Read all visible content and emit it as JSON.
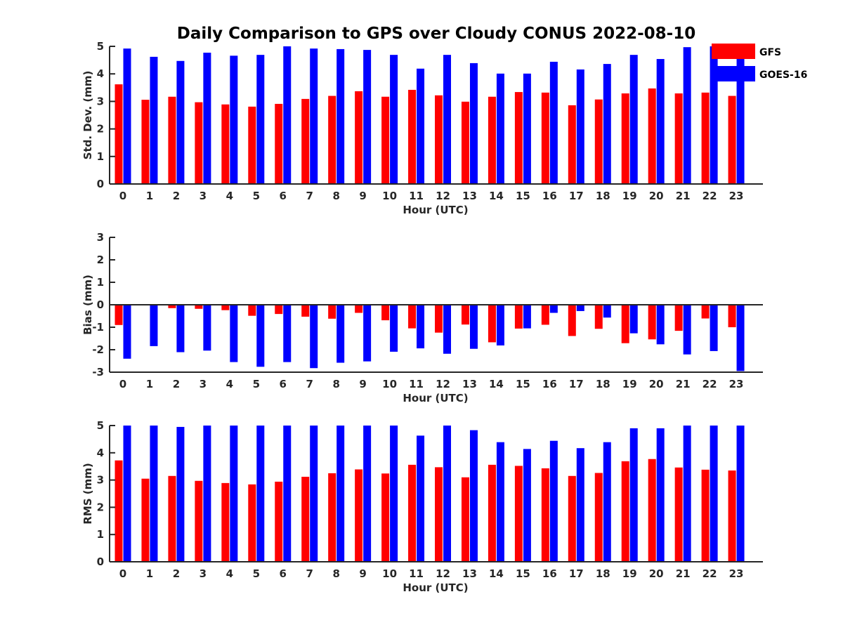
{
  "title": "Daily Comparison to GPS over Cloudy CONUS 2022-08-10",
  "colors": {
    "GFS": "#ff0000",
    "GOES-16": "#0000ff"
  },
  "legend": {
    "position": "top-right",
    "entries": [
      "GFS",
      "GOES-16"
    ]
  },
  "chart_data": [
    {
      "type": "bar",
      "xlabel": "Hour (UTC)",
      "ylabel": "Std. Dev. (mm)",
      "ylim": [
        0,
        5
      ],
      "yticks": [
        0,
        1,
        2,
        3,
        4,
        5
      ],
      "categories": [
        "0",
        "1",
        "2",
        "3",
        "4",
        "5",
        "6",
        "7",
        "8",
        "9",
        "10",
        "11",
        "12",
        "13",
        "14",
        "15",
        "16",
        "17",
        "18",
        "19",
        "20",
        "21",
        "22",
        "23"
      ],
      "series": [
        {
          "name": "GFS",
          "values": [
            3.62,
            3.06,
            3.17,
            2.97,
            2.89,
            2.81,
            2.91,
            3.09,
            3.2,
            3.37,
            3.17,
            3.42,
            3.22,
            2.99,
            3.17,
            3.34,
            3.32,
            2.86,
            3.07,
            3.29,
            3.47,
            3.29,
            3.32,
            3.2
          ]
        },
        {
          "name": "GOES-16",
          "values": [
            4.92,
            4.62,
            4.47,
            4.77,
            4.66,
            4.69,
            5.0,
            4.92,
            4.9,
            4.87,
            4.69,
            4.19,
            4.69,
            4.39,
            4.01,
            4.01,
            4.44,
            4.16,
            4.36,
            4.69,
            4.54,
            4.97,
            5.0,
            4.85
          ]
        }
      ]
    },
    {
      "type": "bar",
      "xlabel": "Hour (UTC)",
      "ylabel": "Bias (mm)",
      "ylim": [
        -3,
        3
      ],
      "yticks": [
        -3,
        -2,
        -1,
        0,
        1,
        2,
        3
      ],
      "categories": [
        "0",
        "1",
        "2",
        "3",
        "4",
        "5",
        "6",
        "7",
        "8",
        "9",
        "10",
        "11",
        "12",
        "13",
        "14",
        "15",
        "16",
        "17",
        "18",
        "19",
        "20",
        "21",
        "22",
        "23"
      ],
      "series": [
        {
          "name": "GFS",
          "values": [
            -0.9,
            0.0,
            -0.15,
            -0.18,
            -0.24,
            -0.49,
            -0.41,
            -0.53,
            -0.62,
            -0.36,
            -0.69,
            -1.05,
            -1.24,
            -0.88,
            -1.67,
            -1.06,
            -0.89,
            -1.39,
            -1.07,
            -1.71,
            -1.54,
            -1.16,
            -0.61,
            -1.0
          ]
        },
        {
          "name": "GOES-16",
          "values": [
            -2.4,
            -1.84,
            -2.11,
            -2.04,
            -2.55,
            -2.76,
            -2.55,
            -2.82,
            -2.58,
            -2.52,
            -2.09,
            -1.94,
            -2.18,
            -1.96,
            -1.81,
            -1.05,
            -0.36,
            -0.28,
            -0.57,
            -1.27,
            -1.76,
            -2.21,
            -2.06,
            -2.95
          ]
        }
      ]
    },
    {
      "type": "bar",
      "xlabel": "Hour (UTC)",
      "ylabel": "RMS (mm)",
      "ylim": [
        0,
        5
      ],
      "yticks": [
        0,
        1,
        2,
        3,
        4,
        5
      ],
      "categories": [
        "0",
        "1",
        "2",
        "3",
        "4",
        "5",
        "6",
        "7",
        "8",
        "9",
        "10",
        "11",
        "12",
        "13",
        "14",
        "15",
        "16",
        "17",
        "18",
        "19",
        "20",
        "21",
        "22",
        "23"
      ],
      "series": [
        {
          "name": "GFS",
          "values": [
            3.72,
            3.05,
            3.15,
            2.97,
            2.89,
            2.84,
            2.94,
            3.12,
            3.25,
            3.39,
            3.24,
            3.56,
            3.47,
            3.1,
            3.56,
            3.52,
            3.43,
            3.15,
            3.26,
            3.69,
            3.77,
            3.46,
            3.38,
            3.35
          ]
        },
        {
          "name": "GOES-16",
          "values": [
            5.0,
            5.0,
            4.95,
            5.0,
            5.0,
            5.0,
            5.0,
            5.0,
            5.0,
            5.0,
            5.0,
            4.63,
            5.0,
            4.83,
            4.39,
            4.14,
            4.44,
            4.17,
            4.39,
            4.9,
            4.9,
            5.0,
            5.0,
            5.0
          ]
        }
      ]
    }
  ]
}
